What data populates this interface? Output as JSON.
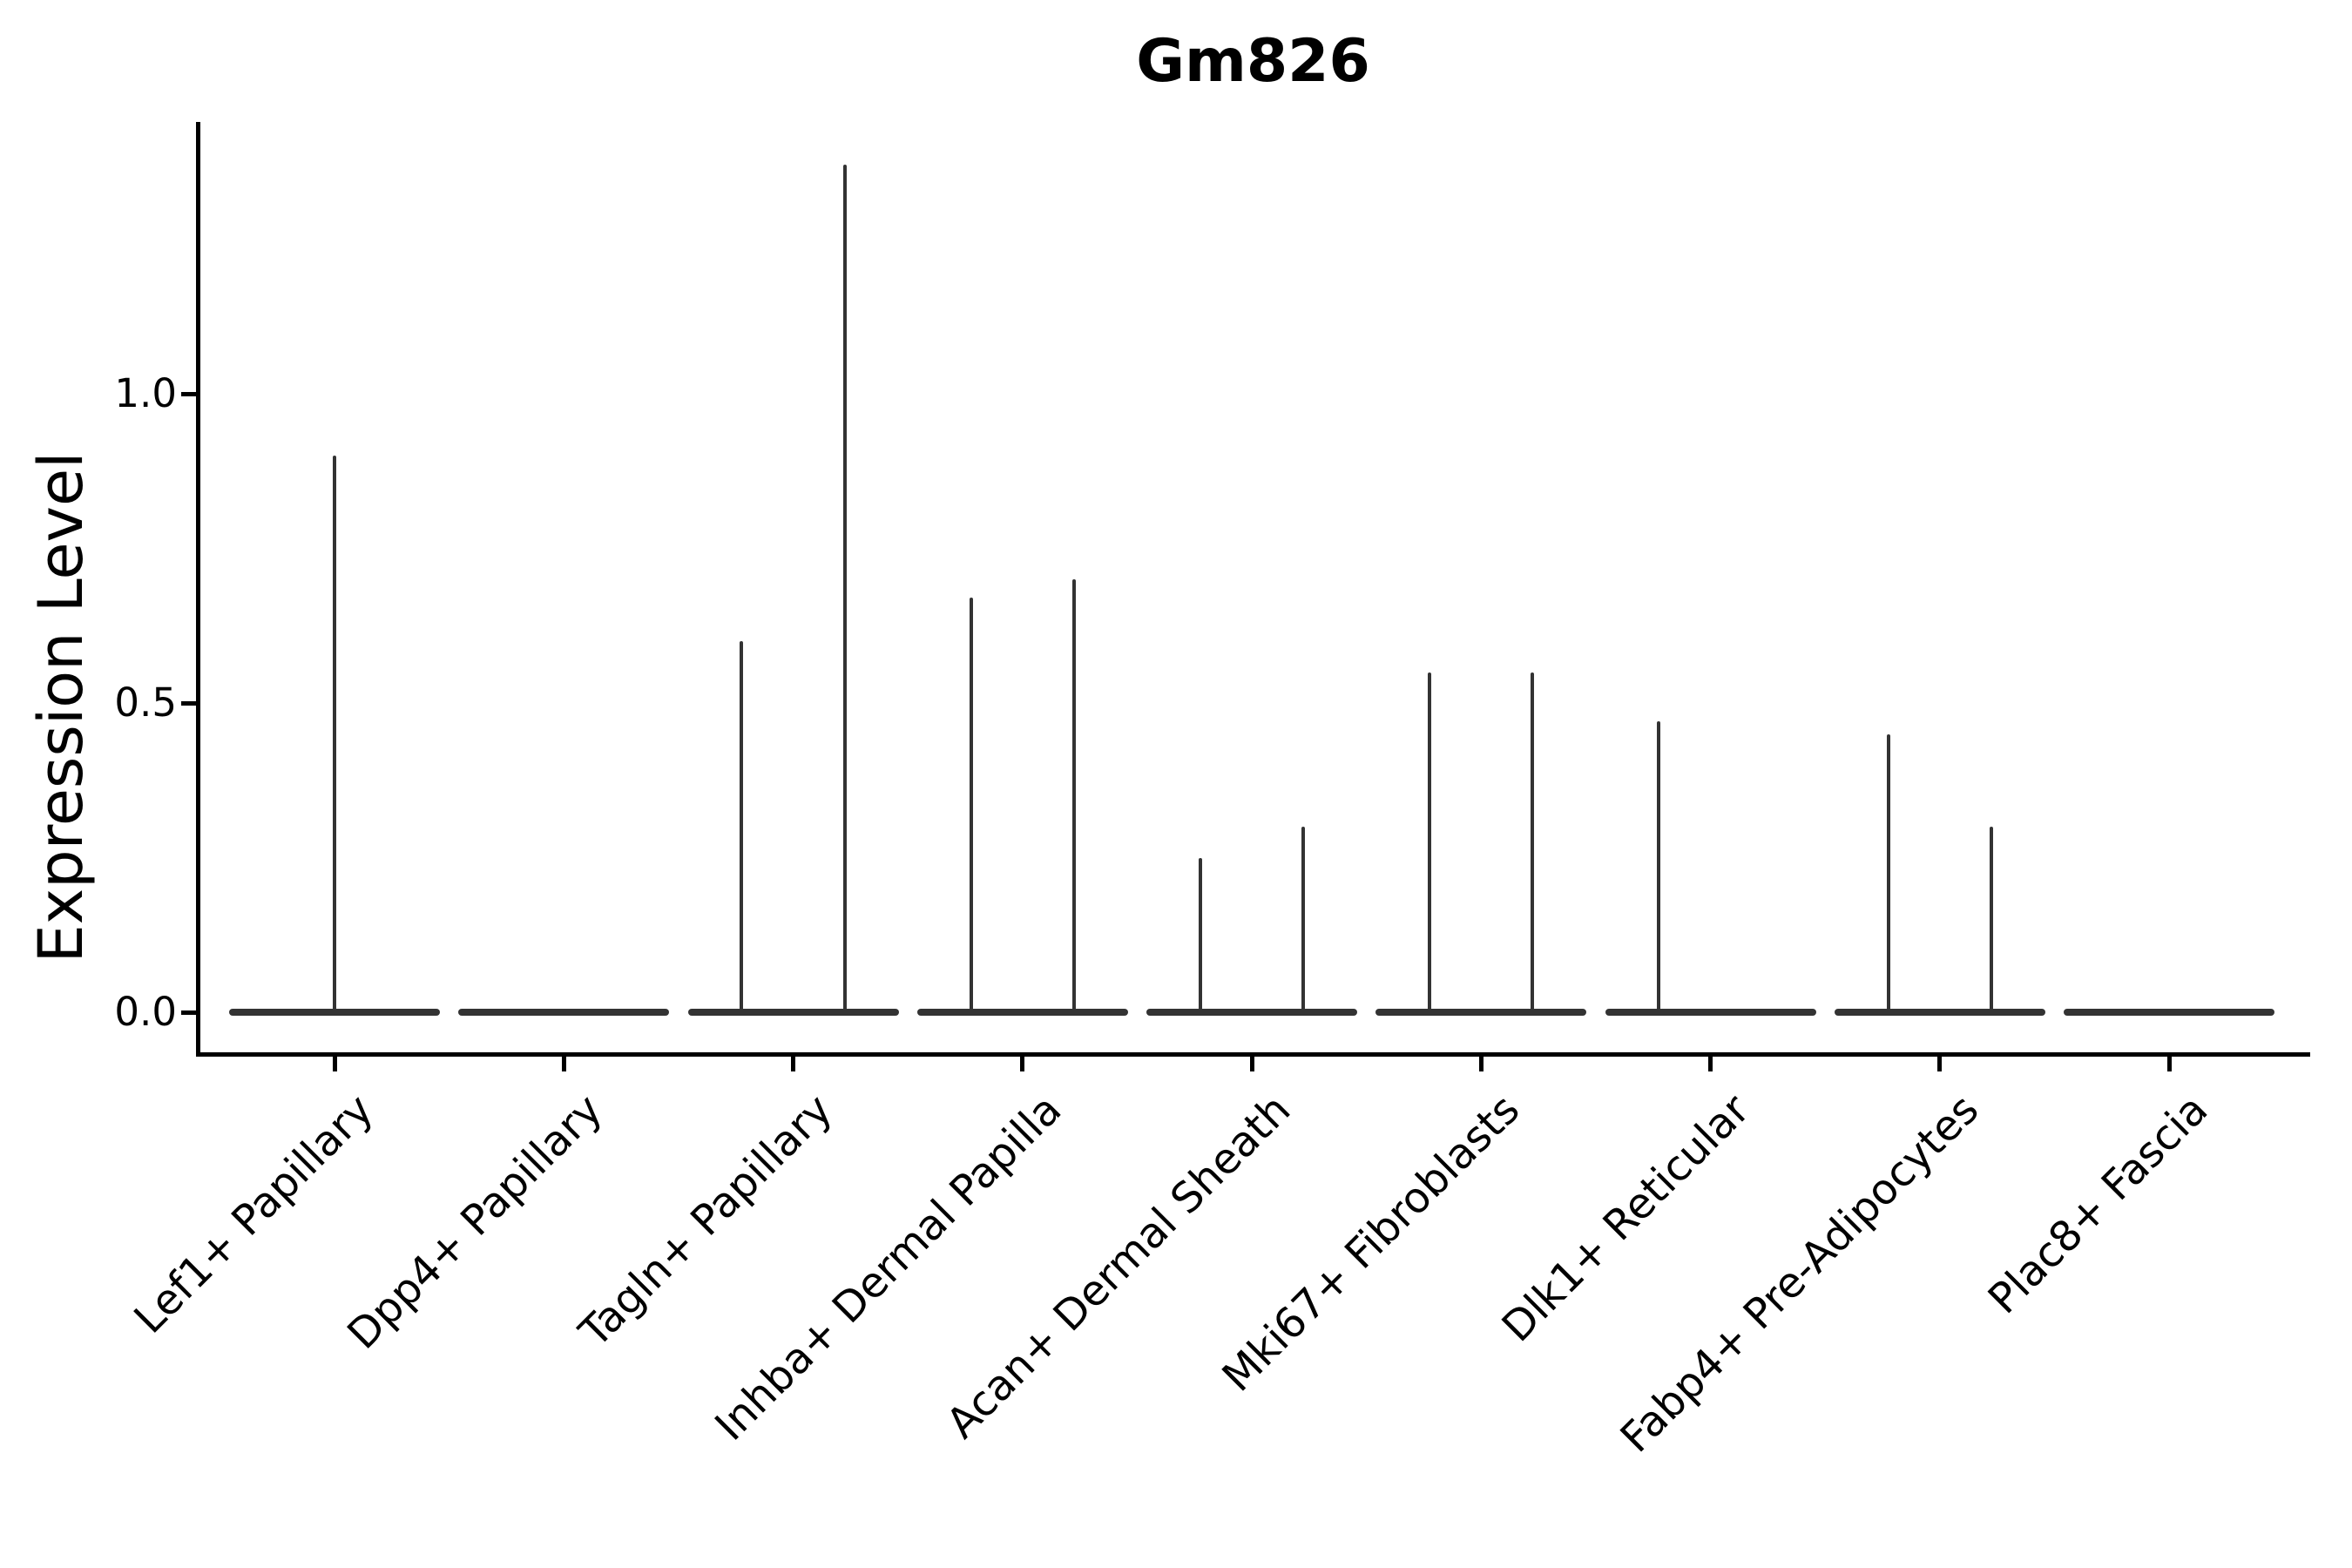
{
  "figure": {
    "background": "#ffffff"
  },
  "chart_data": {
    "type": "violin",
    "title": "Gm826",
    "ylabel": "Expression Level",
    "xlabel": "",
    "grid": false,
    "legend": "none",
    "yticks": [
      1.0,
      0.5,
      0.0
    ],
    "ylim": [
      -0.07,
      1.44
    ],
    "violin_color": "#333333",
    "axis_color": "#000000",
    "categories": [
      "Lef1+ Papillary",
      "Dpp4+ Papillary",
      "Tagln+ Papillary",
      "Inhba+ Dermal Papilla",
      "Acan+ Dermal Sheath",
      "Mki67+ Fibroblasts",
      "Dlk1+ Reticular",
      "Fabp4+ Pre-Adipocytes",
      "Plac8+ Fascia"
    ],
    "violins": [
      {
        "category": "Lef1+ Papillary",
        "baseline_value": 0.0,
        "max_value": 0.9,
        "spikes": [
          {
            "offset": 0.0,
            "value": 0.9
          }
        ]
      },
      {
        "category": "Dpp4+ Papillary",
        "baseline_value": 0.0,
        "max_value": 0.0,
        "spikes": []
      },
      {
        "category": "Tagln+ Papillary",
        "baseline_value": 0.0,
        "max_value": 1.37,
        "spikes": [
          {
            "offset": -0.225,
            "value": 0.6
          },
          {
            "offset": 0.225,
            "value": 1.37
          }
        ]
      },
      {
        "category": "Inhba+ Dermal Papilla",
        "baseline_value": 0.0,
        "max_value": 0.7,
        "spikes": [
          {
            "offset": -0.225,
            "value": 0.67
          },
          {
            "offset": 0.225,
            "value": 0.7
          }
        ]
      },
      {
        "category": "Acan+ Dermal Sheath",
        "baseline_value": 0.0,
        "max_value": 0.3,
        "spikes": [
          {
            "offset": -0.225,
            "value": 0.25
          },
          {
            "offset": 0.225,
            "value": 0.3
          }
        ]
      },
      {
        "category": "Mki67+ Fibroblasts",
        "baseline_value": 0.0,
        "max_value": 0.55,
        "spikes": [
          {
            "offset": -0.225,
            "value": 0.55
          },
          {
            "offset": 0.225,
            "value": 0.55
          }
        ]
      },
      {
        "category": "Dlk1+ Reticular",
        "baseline_value": 0.0,
        "max_value": 0.47,
        "spikes": [
          {
            "offset": -0.225,
            "value": 0.47
          }
        ]
      },
      {
        "category": "Fabp4+ Pre-Adipocytes",
        "baseline_value": 0.0,
        "max_value": 0.45,
        "spikes": [
          {
            "offset": -0.225,
            "value": 0.45
          },
          {
            "offset": 0.225,
            "value": 0.3
          }
        ]
      },
      {
        "category": "Plac8+ Fascia",
        "baseline_value": 0.0,
        "max_value": 0.0,
        "spikes": []
      }
    ]
  }
}
